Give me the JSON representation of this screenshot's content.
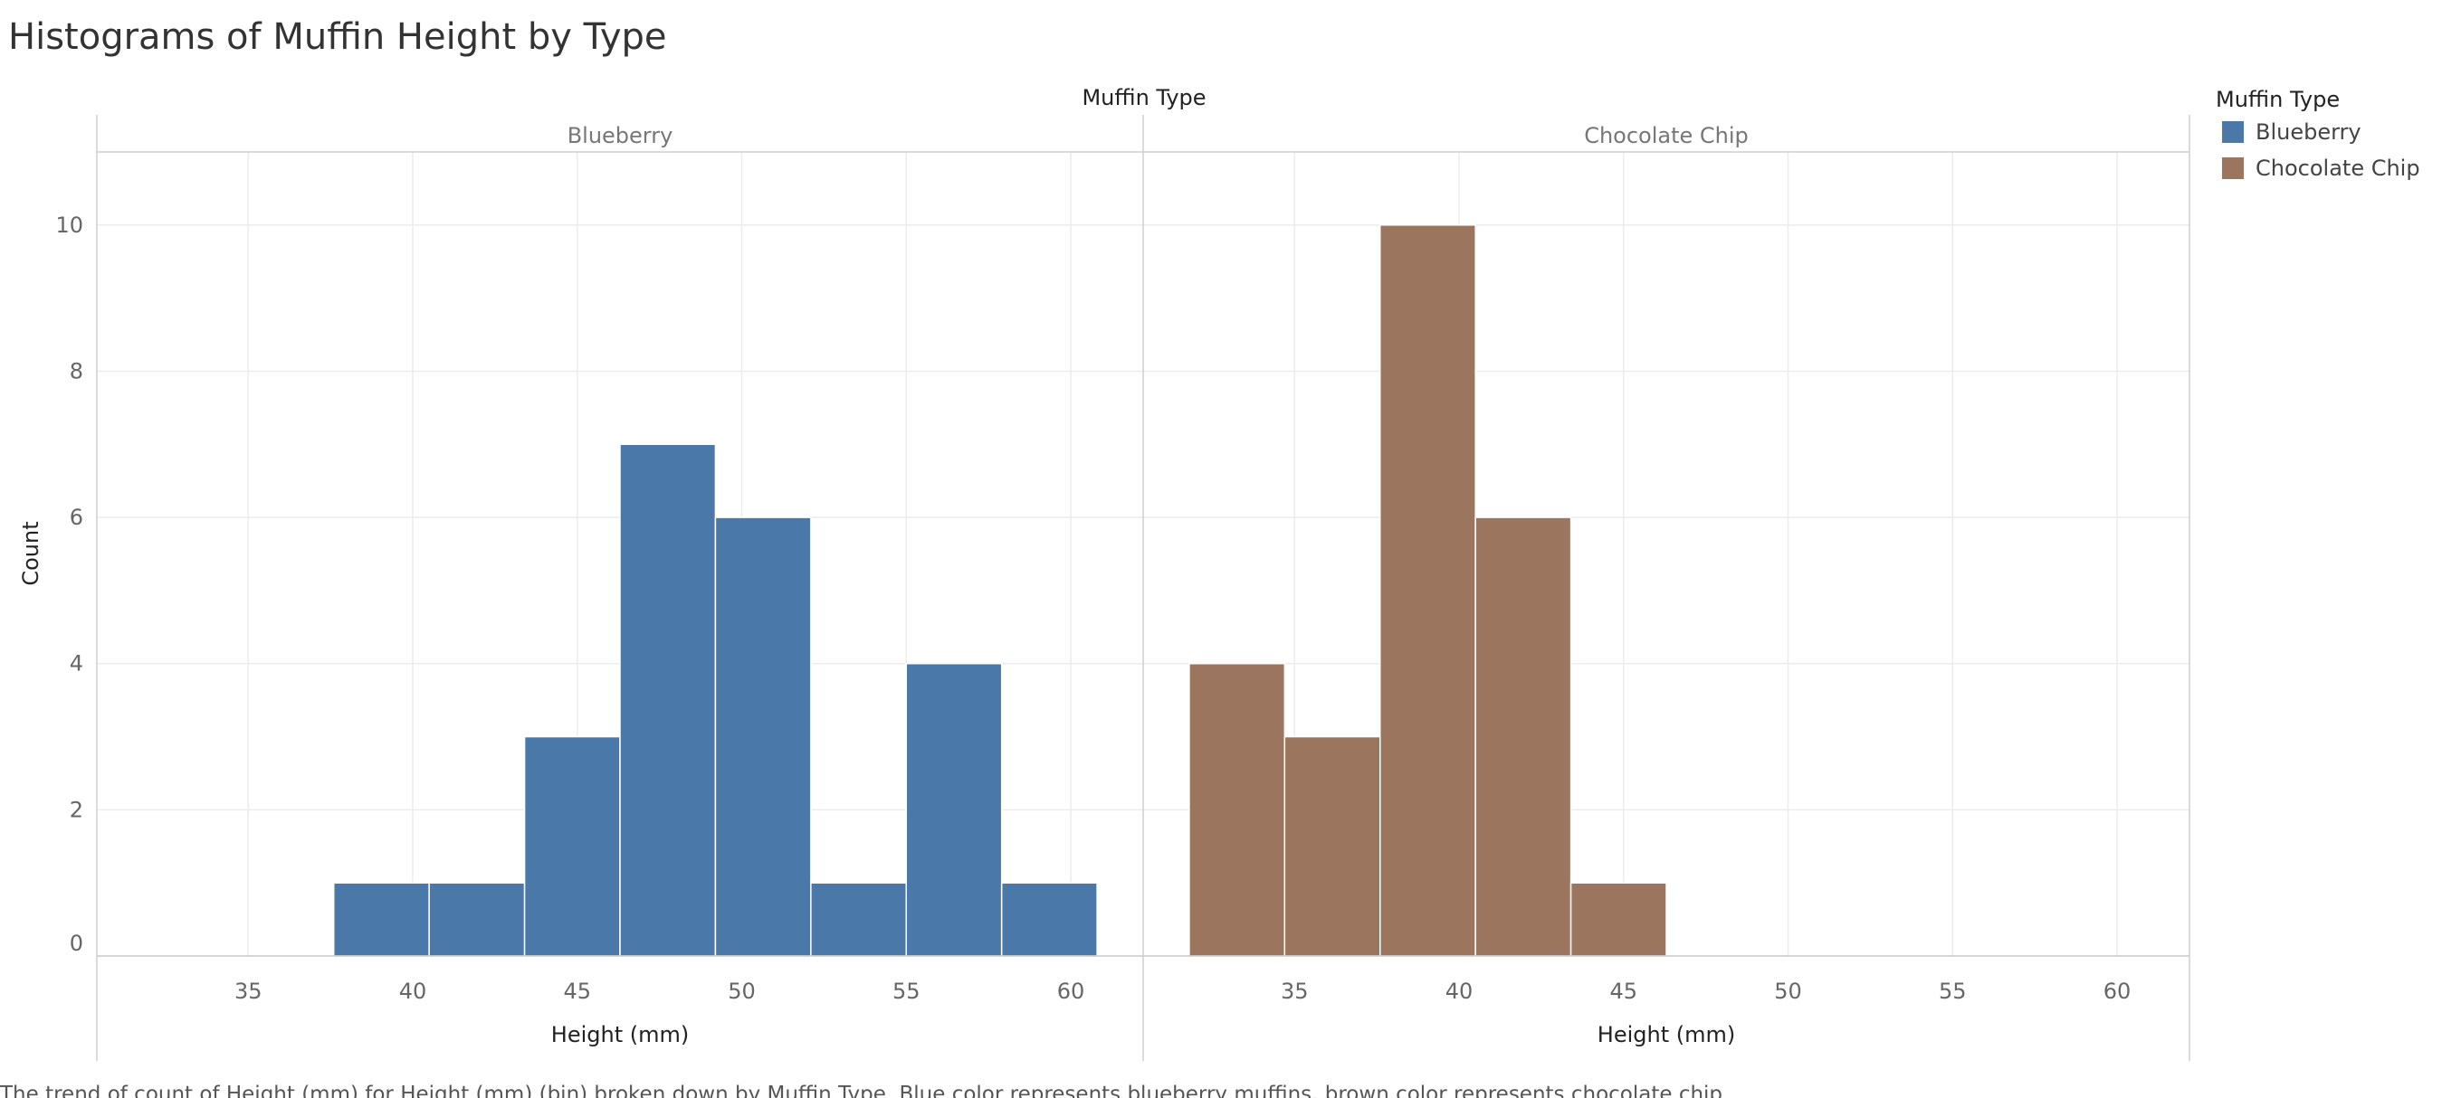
{
  "title": "Histograms of Muffin Height by Type",
  "caption": "The trend of count of Height (mm) for Height (mm) (bin) broken down by Muffin Type.  Blue color represents blueberry muffins, brown color represents chocolate chip.",
  "chart_data": {
    "type": "bar",
    "title": "Histograms of Muffin Height by Type",
    "facet_header": "Muffin Type",
    "xlabel": "Height (mm)",
    "ylabel": "Count",
    "xlim": [
      30.4,
      62.2
    ],
    "ylim": [
      0,
      11
    ],
    "x_ticks": [
      35,
      40,
      45,
      50,
      55,
      60
    ],
    "y_ticks": [
      0,
      2,
      4,
      6,
      8,
      10
    ],
    "bin_width": 2.9,
    "grid": true,
    "legend": {
      "title": "Muffin Type",
      "position": "right",
      "entries": [
        {
          "name": "Blueberry",
          "color": "#4a78a8"
        },
        {
          "name": "Chocolate Chip",
          "color": "#9c755f"
        }
      ]
    },
    "panels": [
      {
        "name": "Blueberry",
        "color": "#4a78a8",
        "bins": [
          {
            "x0": 37.6,
            "x1": 40.5,
            "count": 1
          },
          {
            "x0": 40.5,
            "x1": 43.4,
            "count": 1
          },
          {
            "x0": 43.4,
            "x1": 46.3,
            "count": 3
          },
          {
            "x0": 46.3,
            "x1": 49.2,
            "count": 7
          },
          {
            "x0": 49.2,
            "x1": 52.1,
            "count": 6
          },
          {
            "x0": 52.1,
            "x1": 55.0,
            "count": 1
          },
          {
            "x0": 55.0,
            "x1": 57.9,
            "count": 4
          },
          {
            "x0": 57.9,
            "x1": 60.8,
            "count": 1
          }
        ]
      },
      {
        "name": "Chocolate Chip",
        "color": "#9c755f",
        "bins": [
          {
            "x0": 31.8,
            "x1": 34.7,
            "count": 4
          },
          {
            "x0": 34.7,
            "x1": 37.6,
            "count": 3
          },
          {
            "x0": 37.6,
            "x1": 40.5,
            "count": 10
          },
          {
            "x0": 40.5,
            "x1": 43.4,
            "count": 6
          },
          {
            "x0": 43.4,
            "x1": 46.3,
            "count": 1
          }
        ]
      }
    ]
  }
}
